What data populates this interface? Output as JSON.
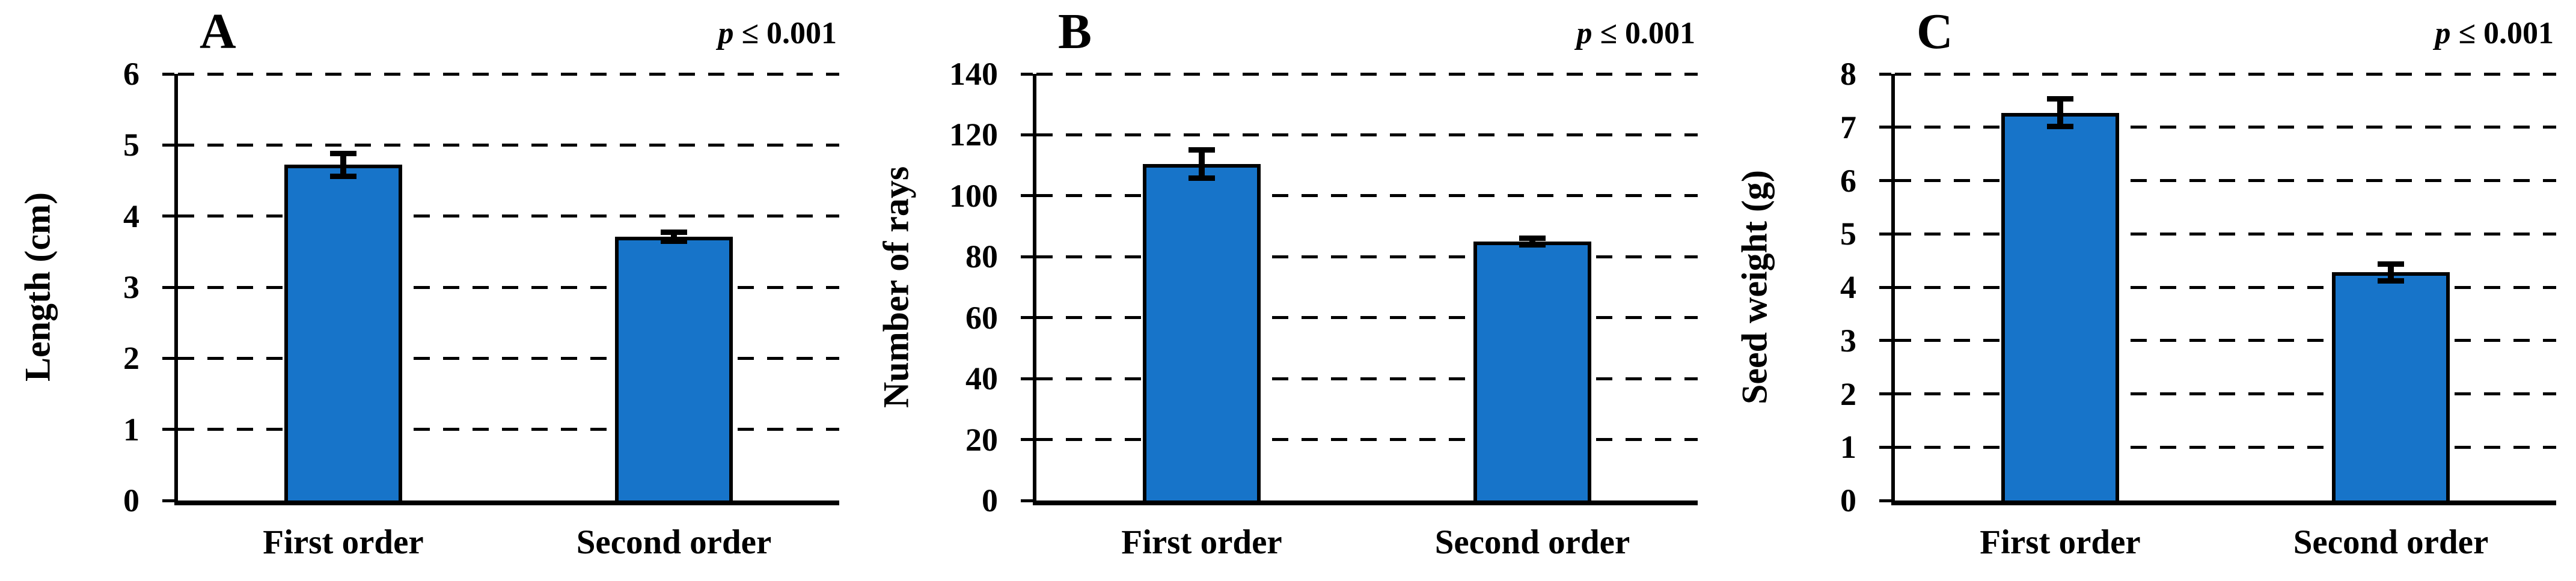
{
  "figure": {
    "background": "#ffffff",
    "bar_fill": "#1774C9",
    "bar_border": "#000000",
    "axis_color": "#000000",
    "gridline_style": "dashed"
  },
  "chart_data": [
    {
      "type": "bar",
      "panel_label": "A",
      "ylabel": "Length (cm)",
      "xlabel": "",
      "categories": [
        "First order",
        "Second order"
      ],
      "values": [
        4.72,
        3.71
      ],
      "errors": [
        0.2,
        0.1
      ],
      "ylim": [
        0,
        6
      ],
      "yticks": [
        0,
        1,
        2,
        3,
        4,
        5,
        6
      ],
      "annotation_var": "p",
      "annotation_rest": "≤ 0.001",
      "grid": "horizontal-dashed",
      "legend": "none"
    },
    {
      "type": "bar",
      "panel_label": "B",
      "ylabel": "Number of rays",
      "xlabel": "",
      "categories": [
        "First order",
        "Second order"
      ],
      "values": [
        110.5,
        85
      ],
      "errors": [
        5.5,
        2
      ],
      "ylim": [
        0,
        140
      ],
      "yticks": [
        0,
        20,
        40,
        60,
        80,
        100,
        120,
        140
      ],
      "annotation_var": "p",
      "annotation_rest": "≤ 0.001",
      "grid": "horizontal-dashed",
      "legend": "none"
    },
    {
      "type": "bar",
      "panel_label": "C",
      "ylabel": "Seed weight (g)",
      "xlabel": "",
      "categories": [
        "First order",
        "Second order"
      ],
      "values": [
        7.27,
        4.28
      ],
      "errors": [
        0.31,
        0.21
      ],
      "ylim": [
        0,
        8
      ],
      "yticks": [
        0,
        1,
        2,
        3,
        4,
        5,
        6,
        7,
        8
      ],
      "annotation_var": "p",
      "annotation_rest": "≤ 0.001",
      "grid": "horizontal-dashed",
      "legend": "none"
    }
  ]
}
